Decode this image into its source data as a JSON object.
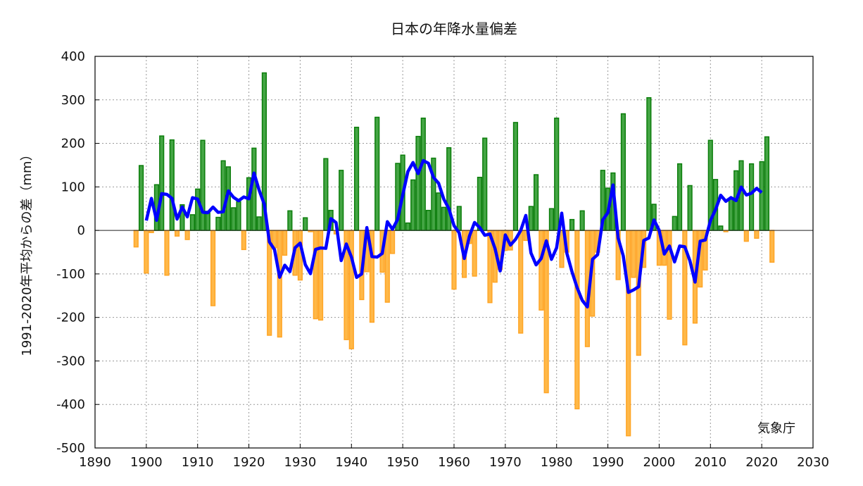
{
  "chart_data": {
    "type": "bar",
    "title": "日本の年降水量偏差",
    "xlabel": "",
    "ylabel": "1991-2020年平均からの差（mm）",
    "credit": "気象庁",
    "xlim": [
      1890,
      2030
    ],
    "ylim": [
      -500,
      400
    ],
    "xticks": [
      1890,
      1900,
      1910,
      1920,
      1930,
      1940,
      1950,
      1960,
      1970,
      1980,
      1990,
      2000,
      2010,
      2020,
      2030
    ],
    "yticks": [
      400,
      300,
      200,
      100,
      0,
      -100,
      -200,
      -300,
      -400,
      -500
    ],
    "grid": true,
    "colors": {
      "positive_fill": "#44a544",
      "positive_edge": "#0b7d0b",
      "negative_fill": "#ffb848",
      "negative_edge": "#ffa526",
      "running_mean": "#0000ff"
    },
    "years_start": 1898,
    "values": [
      -38,
      149,
      -98,
      -5,
      105,
      217,
      -103,
      208,
      -13,
      59,
      -21,
      36,
      95,
      207,
      44,
      -173,
      30,
      160,
      146,
      52,
      66,
      -44,
      121,
      189,
      31,
      362,
      -241,
      -40,
      -245,
      -57,
      45,
      -103,
      -114,
      29,
      -3,
      -203,
      -206,
      165,
      46,
      -8,
      138,
      -251,
      -272,
      237,
      -159,
      -95,
      -211,
      260,
      -96,
      -165,
      -53,
      154,
      173,
      17,
      116,
      216,
      258,
      46,
      166,
      86,
      53,
      190,
      -135,
      55,
      -108,
      -30,
      -105,
      122,
      212,
      -166,
      -119,
      -90,
      -46,
      -45,
      248,
      -236,
      -23,
      55,
      128,
      -183,
      -373,
      50,
      258,
      -85,
      -50,
      25,
      -410,
      45,
      -267,
      -197,
      -50,
      138,
      97,
      132,
      -113,
      268,
      -472,
      -108,
      -287,
      -85,
      305,
      60,
      -80,
      -80,
      -204,
      32,
      153,
      -263,
      103,
      -213,
      -130,
      -91,
      207,
      117,
      10,
      -3,
      73,
      137,
      160,
      -25,
      153,
      -18,
      158,
      215,
      -73
    ],
    "running_mean_window": 5
  }
}
